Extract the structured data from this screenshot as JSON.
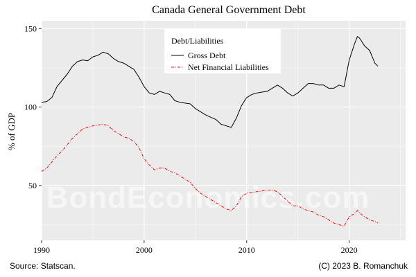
{
  "chart_data": {
    "type": "line",
    "title": "Canada General Government Debt",
    "xlabel": "",
    "ylabel": "% of GDP",
    "xlim": [
      1990,
      2025.5
    ],
    "ylim": [
      15,
      155
    ],
    "x_ticks": [
      1990,
      2000,
      2010,
      2020
    ],
    "y_ticks": [
      50,
      100,
      150
    ],
    "x_minor_ticks": [
      1995,
      2005,
      2015,
      2025
    ],
    "y_minor_ticks": [
      25,
      75,
      125
    ],
    "grid": true,
    "legend": {
      "title": "Debt/Liabilities",
      "position": "top-center"
    },
    "series": [
      {
        "name": "Gross Debt",
        "color": "#000000",
        "line_style": "solid",
        "points": [
          [
            1990.0,
            103
          ],
          [
            1990.5,
            103.5
          ],
          [
            1991.0,
            106
          ],
          [
            1991.5,
            113
          ],
          [
            1992.0,
            117
          ],
          [
            1992.5,
            121
          ],
          [
            1993.0,
            126
          ],
          [
            1993.5,
            129
          ],
          [
            1994.0,
            130
          ],
          [
            1994.5,
            129.5
          ],
          [
            1995.0,
            132
          ],
          [
            1995.5,
            133
          ],
          [
            1996.0,
            135
          ],
          [
            1996.5,
            134
          ],
          [
            1997.0,
            131
          ],
          [
            1997.5,
            129
          ],
          [
            1998.0,
            128
          ],
          [
            1998.5,
            126
          ],
          [
            1999.0,
            124
          ],
          [
            1999.5,
            119
          ],
          [
            2000.0,
            113
          ],
          [
            2000.5,
            109
          ],
          [
            2001.0,
            108
          ],
          [
            2001.5,
            110
          ],
          [
            2002.0,
            109
          ],
          [
            2002.5,
            108
          ],
          [
            2003.0,
            104
          ],
          [
            2003.5,
            103
          ],
          [
            2004.0,
            102.5
          ],
          [
            2004.5,
            102
          ],
          [
            2005.0,
            99
          ],
          [
            2005.5,
            97
          ],
          [
            2006.0,
            95
          ],
          [
            2006.5,
            93.5
          ],
          [
            2007.0,
            92
          ],
          [
            2007.5,
            89
          ],
          [
            2008.0,
            88
          ],
          [
            2008.5,
            87
          ],
          [
            2009.0,
            93
          ],
          [
            2009.5,
            101
          ],
          [
            2010.0,
            106
          ],
          [
            2010.5,
            108
          ],
          [
            2011.0,
            109
          ],
          [
            2011.5,
            109.5
          ],
          [
            2012.0,
            110
          ],
          [
            2012.5,
            112
          ],
          [
            2013.0,
            114
          ],
          [
            2013.5,
            112
          ],
          [
            2014.0,
            109
          ],
          [
            2014.5,
            107
          ],
          [
            2015.0,
            109
          ],
          [
            2015.5,
            112
          ],
          [
            2016.0,
            115
          ],
          [
            2016.5,
            115
          ],
          [
            2017.0,
            114
          ],
          [
            2017.5,
            114
          ],
          [
            2018.0,
            112
          ],
          [
            2018.5,
            112
          ],
          [
            2019.0,
            114
          ],
          [
            2019.5,
            113
          ],
          [
            2020.0,
            130
          ],
          [
            2020.5,
            140
          ],
          [
            2020.8,
            145
          ],
          [
            2021.0,
            144
          ],
          [
            2021.5,
            139
          ],
          [
            2022.0,
            136
          ],
          [
            2022.5,
            128
          ],
          [
            2022.8,
            126
          ]
        ]
      },
      {
        "name": "Net Financial Liabilities",
        "color": "#ff0000",
        "line_style": "dashdot",
        "points": [
          [
            1990.0,
            59
          ],
          [
            1990.5,
            61
          ],
          [
            1991.0,
            65
          ],
          [
            1991.5,
            69
          ],
          [
            1992.0,
            72
          ],
          [
            1992.5,
            76
          ],
          [
            1993.0,
            80
          ],
          [
            1993.5,
            83
          ],
          [
            1994.0,
            86
          ],
          [
            1994.5,
            87
          ],
          [
            1995.0,
            88
          ],
          [
            1995.5,
            88.5
          ],
          [
            1996.0,
            89
          ],
          [
            1996.5,
            88
          ],
          [
            1997.0,
            85
          ],
          [
            1997.5,
            83
          ],
          [
            1998.0,
            81
          ],
          [
            1998.5,
            80
          ],
          [
            1999.0,
            78
          ],
          [
            1999.5,
            74
          ],
          [
            2000.0,
            67
          ],
          [
            2000.5,
            63
          ],
          [
            2001.0,
            60
          ],
          [
            2001.5,
            61
          ],
          [
            2002.0,
            61
          ],
          [
            2002.5,
            59
          ],
          [
            2003.0,
            58
          ],
          [
            2003.5,
            56
          ],
          [
            2004.0,
            54
          ],
          [
            2004.5,
            52
          ],
          [
            2005.0,
            48
          ],
          [
            2005.5,
            45
          ],
          [
            2006.0,
            43
          ],
          [
            2006.5,
            41
          ],
          [
            2007.0,
            39
          ],
          [
            2007.5,
            37
          ],
          [
            2008.0,
            35
          ],
          [
            2008.5,
            34
          ],
          [
            2009.0,
            37
          ],
          [
            2009.5,
            43
          ],
          [
            2010.0,
            45
          ],
          [
            2010.5,
            45.5
          ],
          [
            2011.0,
            46
          ],
          [
            2011.5,
            46.5
          ],
          [
            2012.0,
            47
          ],
          [
            2012.5,
            47
          ],
          [
            2013.0,
            46
          ],
          [
            2013.5,
            43
          ],
          [
            2014.0,
            40
          ],
          [
            2014.5,
            37
          ],
          [
            2015.0,
            37
          ],
          [
            2015.5,
            35
          ],
          [
            2016.0,
            34
          ],
          [
            2016.5,
            33
          ],
          [
            2017.0,
            31
          ],
          [
            2017.5,
            30
          ],
          [
            2018.0,
            28
          ],
          [
            2018.5,
            26
          ],
          [
            2019.0,
            25
          ],
          [
            2019.5,
            24
          ],
          [
            2020.0,
            30
          ],
          [
            2020.5,
            32
          ],
          [
            2020.8,
            34
          ],
          [
            2021.0,
            32.5
          ],
          [
            2021.5,
            30
          ],
          [
            2022.0,
            28
          ],
          [
            2022.5,
            27
          ],
          [
            2022.8,
            26
          ]
        ]
      }
    ]
  },
  "captions": {
    "source": "Source: Statscan.",
    "copyright": "(C) 2023 B. Romanchuk"
  },
  "watermark": "BondEconomics.com"
}
